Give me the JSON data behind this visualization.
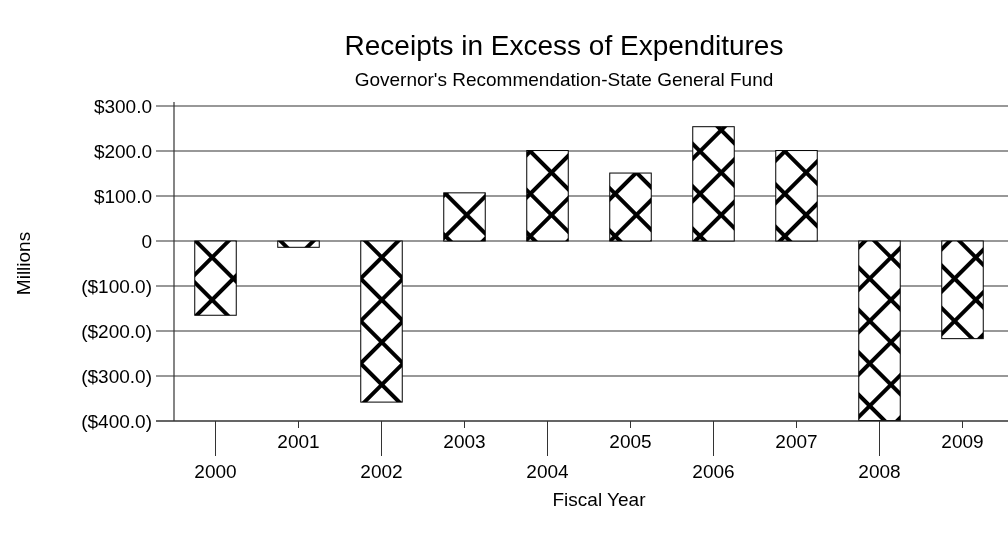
{
  "chart_data": {
    "type": "bar",
    "title": "Receipts in Excess of Expenditures",
    "subtitle": "Governor's Recommendation-State General Fund",
    "xlabel": "Fiscal Year",
    "ylabel": "Millions",
    "categories": [
      "2000",
      "2001",
      "2002",
      "2003",
      "2004",
      "2005",
      "2006",
      "2007",
      "2008",
      "2009"
    ],
    "values": [
      -165,
      -14,
      -358,
      107,
      201,
      151,
      254,
      201,
      -399,
      -217
    ],
    "color": "#000000",
    "ylim": [
      -400,
      300
    ],
    "yticks": [
      {
        "value": -400,
        "label": "($400.0)"
      },
      {
        "value": -300,
        "label": "($300.0)"
      },
      {
        "value": -200,
        "label": "($200.0)"
      },
      {
        "value": -100,
        "label": "($100.0)"
      },
      0,
      {
        "value": 100,
        "label": "$100.0"
      },
      {
        "value": 200,
        "label": "$200.0"
      },
      {
        "value": 300,
        "label": "$300.0"
      }
    ],
    "grid": "y"
  }
}
